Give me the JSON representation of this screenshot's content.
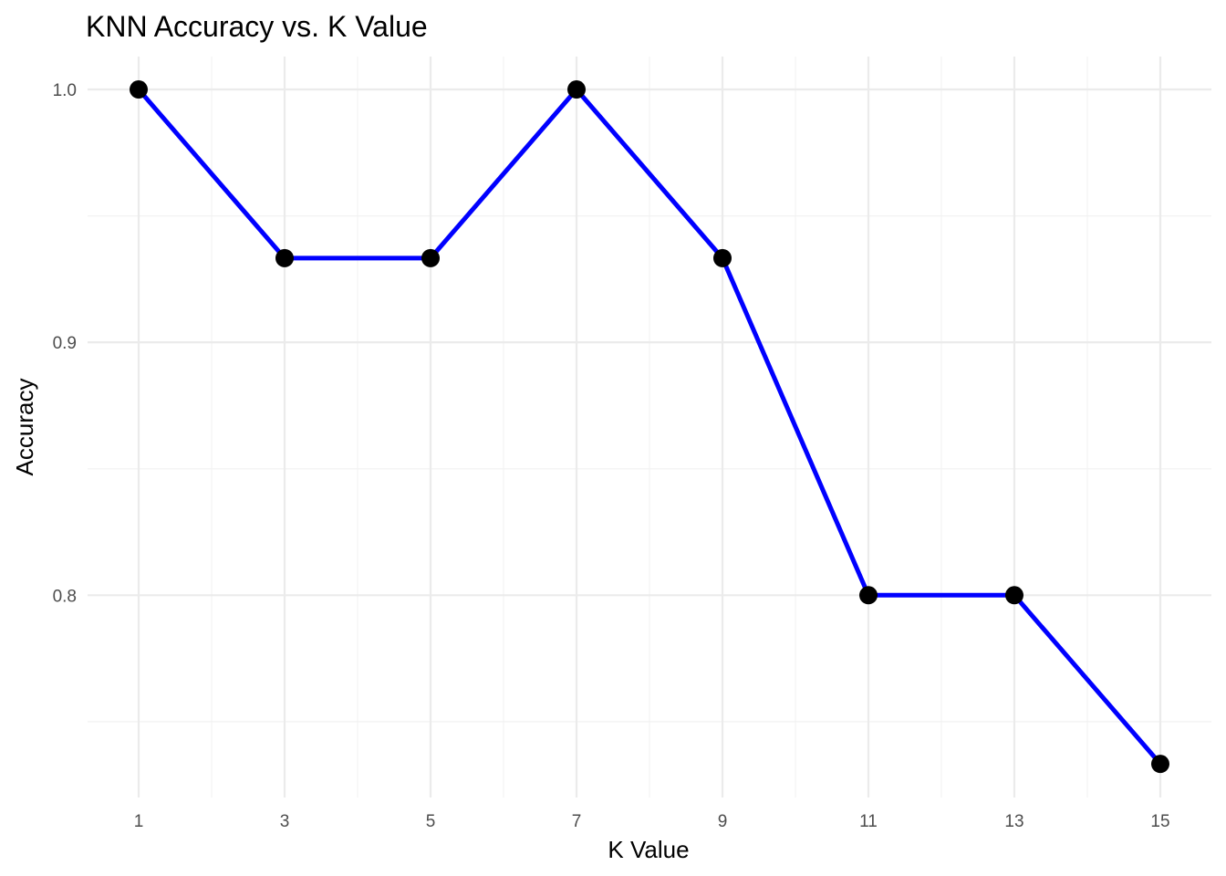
{
  "chart_data": {
    "type": "line",
    "title": "KNN Accuracy vs. K Value",
    "xlabel": "K Value",
    "ylabel": "Accuracy",
    "x": [
      1,
      3,
      5,
      7,
      9,
      11,
      13,
      15
    ],
    "series": [
      {
        "values": [
          1.0,
          0.9333,
          0.9333,
          1.0,
          0.9333,
          0.8,
          0.8,
          0.7333
        ],
        "line_color": "#0000ff",
        "point_color": "#000000"
      }
    ],
    "xlim": [
      0.3,
      15.7
    ],
    "ylim": [
      0.72,
      1.013
    ],
    "x_ticks": [
      1,
      3,
      5,
      7,
      9,
      11,
      13,
      15
    ],
    "x_tick_labels": [
      "1",
      "3",
      "5",
      "7",
      "9",
      "11",
      "13",
      "15"
    ],
    "x_minor_ticks": [
      2,
      4,
      6,
      8,
      10,
      12,
      14
    ],
    "y_ticks": [
      0.8,
      0.9,
      1.0
    ],
    "y_tick_labels": [
      "0.8",
      "0.9",
      "1.0"
    ],
    "y_minor_ticks": [
      0.75,
      0.85,
      0.95
    ],
    "grid": true,
    "legend": "none",
    "background_color": "#ffffff"
  }
}
